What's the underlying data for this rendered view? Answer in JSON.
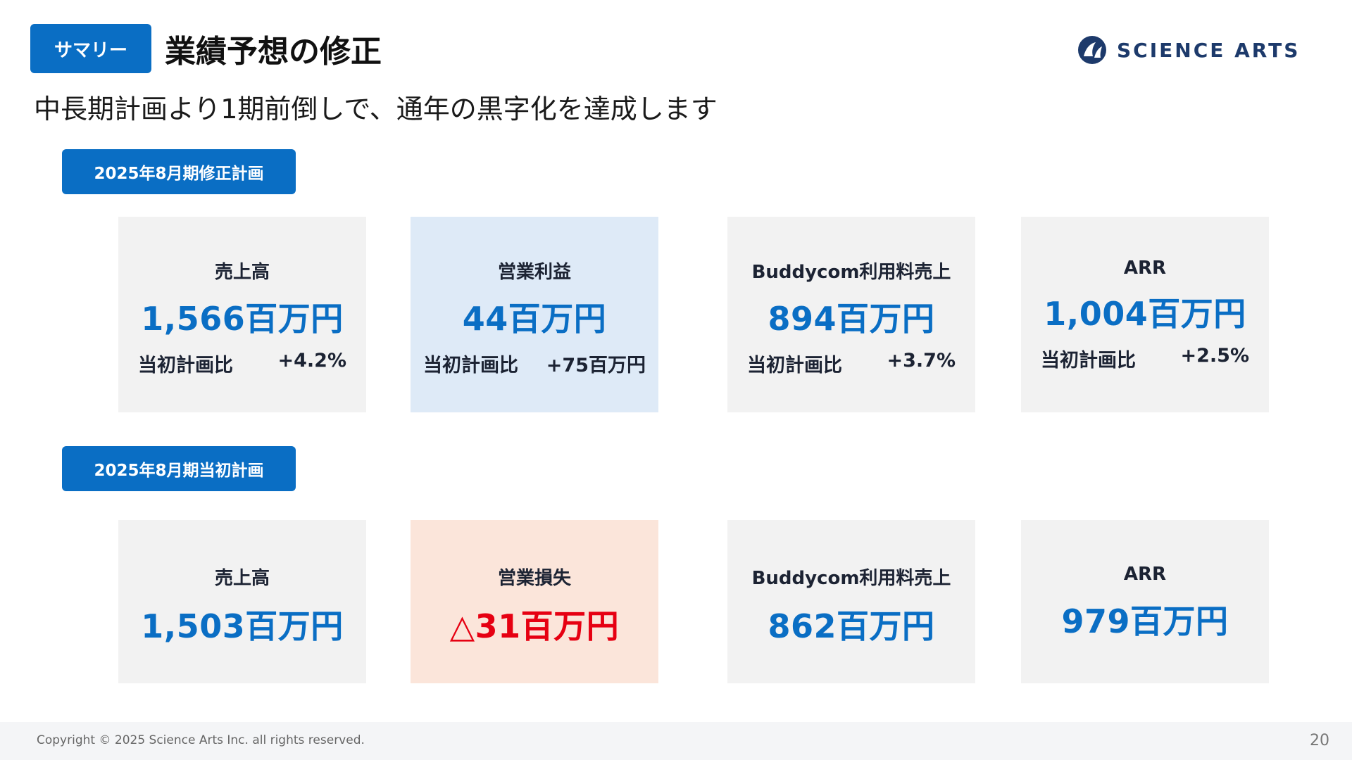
{
  "header": {
    "tag": "サマリー",
    "title": "業績予想の修正",
    "logo_text": "SCIENCE ARTS",
    "logo_icon": "science-arts-logo-icon"
  },
  "subtitle": "中長期計画より1期前倒しで、通年の黒字化を達成します",
  "revised": {
    "tag": "2025年8月期修正計画",
    "cards": [
      {
        "label": "売上高",
        "value": "1,566百万円",
        "compare_label": "当初計画比",
        "compare_value": "+4.2%"
      },
      {
        "label": "営業利益",
        "value": "44百万円",
        "compare_label": "当初計画比",
        "compare_value": "+75百万円"
      },
      {
        "label": "Buddycom利用料売上",
        "value": "894百万円",
        "compare_label": "当初計画比",
        "compare_value": "+3.7%"
      },
      {
        "label": "ARR",
        "value": "1,004百万円",
        "compare_label": "当初計画比",
        "compare_value": "+2.5%"
      }
    ]
  },
  "initial": {
    "tag": "2025年8月期当初計画",
    "cards": [
      {
        "label": "売上高",
        "value": "1,503百万円"
      },
      {
        "label": "営業損失",
        "value": "△31百万円"
      },
      {
        "label": "Buddycom利用料売上",
        "value": "862百万円"
      },
      {
        "label": "ARR",
        "value": "979百万円"
      }
    ]
  },
  "colors": {
    "accent": "#0a6ec4",
    "negative": "#e60012",
    "highlight_blue": "#deeaf7",
    "highlight_pink": "#fbe5da"
  },
  "footer": {
    "copyright": "Copyright © 2025 Science Arts Inc. all rights reserved.",
    "page_number": "20"
  }
}
